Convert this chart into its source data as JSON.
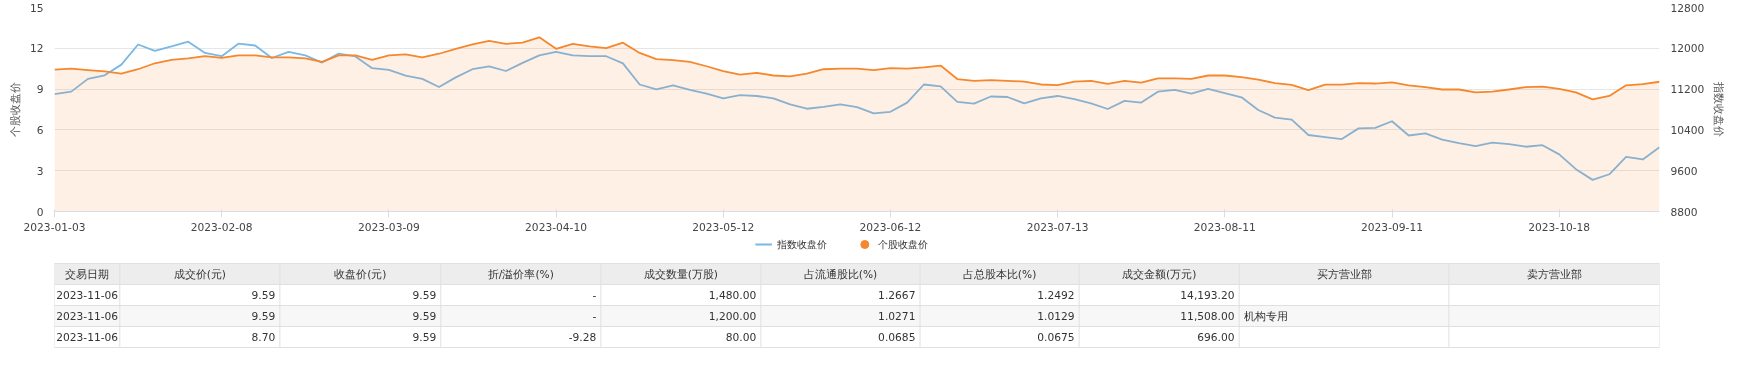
{
  "chart_data": {
    "type": "line",
    "xlabel": null,
    "ylabel": "个股收盘价",
    "y2label": "指数收盘价",
    "categories": [
      "2023-01-03",
      null,
      null,
      null,
      null,
      null,
      null,
      null,
      null,
      null,
      "2023-02-08",
      null,
      null,
      null,
      null,
      null,
      null,
      null,
      null,
      null,
      "2023-03-09",
      null,
      null,
      null,
      null,
      null,
      null,
      null,
      null,
      null,
      "2023-04-10",
      null,
      null,
      null,
      null,
      null,
      null,
      null,
      null,
      null,
      "2023-05-12",
      null,
      null,
      null,
      null,
      null,
      null,
      null,
      null,
      null,
      "2023-06-12",
      null,
      null,
      null,
      null,
      null,
      null,
      null,
      null,
      null,
      "2023-07-13",
      null,
      null,
      null,
      null,
      null,
      null,
      null,
      null,
      null,
      "2023-08-11",
      null,
      null,
      null,
      null,
      null,
      null,
      null,
      null,
      null,
      "2023-09-11",
      null,
      null,
      null,
      null,
      null,
      null,
      null,
      null,
      null,
      "2023-10-18",
      null,
      null,
      null,
      null,
      null,
      null
    ],
    "ylim": [
      0,
      15
    ],
    "yticks": [
      0,
      3,
      6,
      9,
      12,
      15
    ],
    "y2lim": [
      8800,
      12800
    ],
    "y2ticks": [
      8800,
      9600,
      10400,
      11200,
      12000,
      12800
    ],
    "grid": "y",
    "legend": "bottom",
    "series": [
      {
        "name": "指数收盘价",
        "type": "line",
        "axis": "y2",
        "color": "#7ab8e6",
        "values": [
          11100,
          11150,
          11400,
          11470,
          11680,
          12075,
          11950,
          12040,
          12130,
          11910,
          11845,
          12090,
          12055,
          11810,
          11930,
          11860,
          11720,
          11895,
          11840,
          11610,
          11575,
          11465,
          11400,
          11240,
          11430,
          11590,
          11645,
          11555,
          11715,
          11860,
          11930,
          11860,
          11845,
          11845,
          11705,
          11290,
          11195,
          11275,
          11185,
          11110,
          11020,
          11080,
          11065,
          11020,
          10900,
          10815,
          10850,
          10900,
          10845,
          10725,
          10755,
          10935,
          11290,
          11255,
          10950,
          10915,
          11055,
          11045,
          10920,
          11020,
          11065,
          11005,
          10920,
          10810,
          10970,
          10935,
          11150,
          11185,
          11110,
          11205,
          11120,
          11040,
          10790,
          10640,
          10600,
          10300,
          10260,
          10220,
          10430,
          10440,
          10570,
          10290,
          10330,
          10210,
          10140,
          10080,
          10150,
          10120,
          10070,
          10100,
          9920,
          9630,
          9420,
          9530,
          9870,
          9820,
          10060
        ]
      },
      {
        "name": "个股收盘价",
        "type": "area",
        "color": "#f5872c",
        "values": [
          10.43,
          10.5,
          10.4,
          10.3,
          10.14,
          10.46,
          10.9,
          11.15,
          11.26,
          11.42,
          11.29,
          11.48,
          11.48,
          11.34,
          11.34,
          11.26,
          11.0,
          11.48,
          11.48,
          11.15,
          11.48,
          11.56,
          11.34,
          11.6,
          11.96,
          12.28,
          12.54,
          12.33,
          12.41,
          12.81,
          11.96,
          12.33,
          12.14,
          12.01,
          12.41,
          11.66,
          11.21,
          11.13,
          11.0,
          10.68,
          10.33,
          10.06,
          10.2,
          10.0,
          9.93,
          10.14,
          10.46,
          10.5,
          10.5,
          10.4,
          10.54,
          10.5,
          10.6,
          10.73,
          9.74,
          9.61,
          9.66,
          9.61,
          9.55,
          9.34,
          9.29,
          9.55,
          9.61,
          9.39,
          9.61,
          9.47,
          9.79,
          9.79,
          9.75,
          10.0,
          10.0,
          9.88,
          9.7,
          9.44,
          9.31,
          8.92,
          9.33,
          9.33,
          9.44,
          9.41,
          9.49,
          9.28,
          9.15,
          8.97,
          8.97,
          8.76,
          8.81,
          8.97,
          9.15,
          9.18,
          9.02,
          8.76,
          8.24,
          8.5,
          9.28,
          9.36,
          9.54
        ]
      }
    ],
    "annotations": [
      "交易日期",
      "成交价(元)",
      "收盘价(元)",
      "折/溢价率(%)",
      "成交数量(万股)",
      "占流通股比(%)",
      "占总股本比(%)",
      "成交金额(万元)",
      "买方营业部",
      "卖方营业部",
      "2023-11-06",
      "9.59",
      "9.59",
      "-",
      "1,480.00",
      "1.2667",
      "1.2492",
      "14,193.20",
      null,
      null,
      "2023-11-06",
      "9.59",
      "9.59",
      "-",
      "1,200.00",
      "1.0271",
      "1.0129",
      "11,508.00",
      "机构专用",
      null,
      "2023-11-06",
      "8.70",
      "9.59",
      "-9.28",
      "80.00",
      "0.0685",
      "0.0675",
      "696.00",
      null,
      null
    ]
  }
}
